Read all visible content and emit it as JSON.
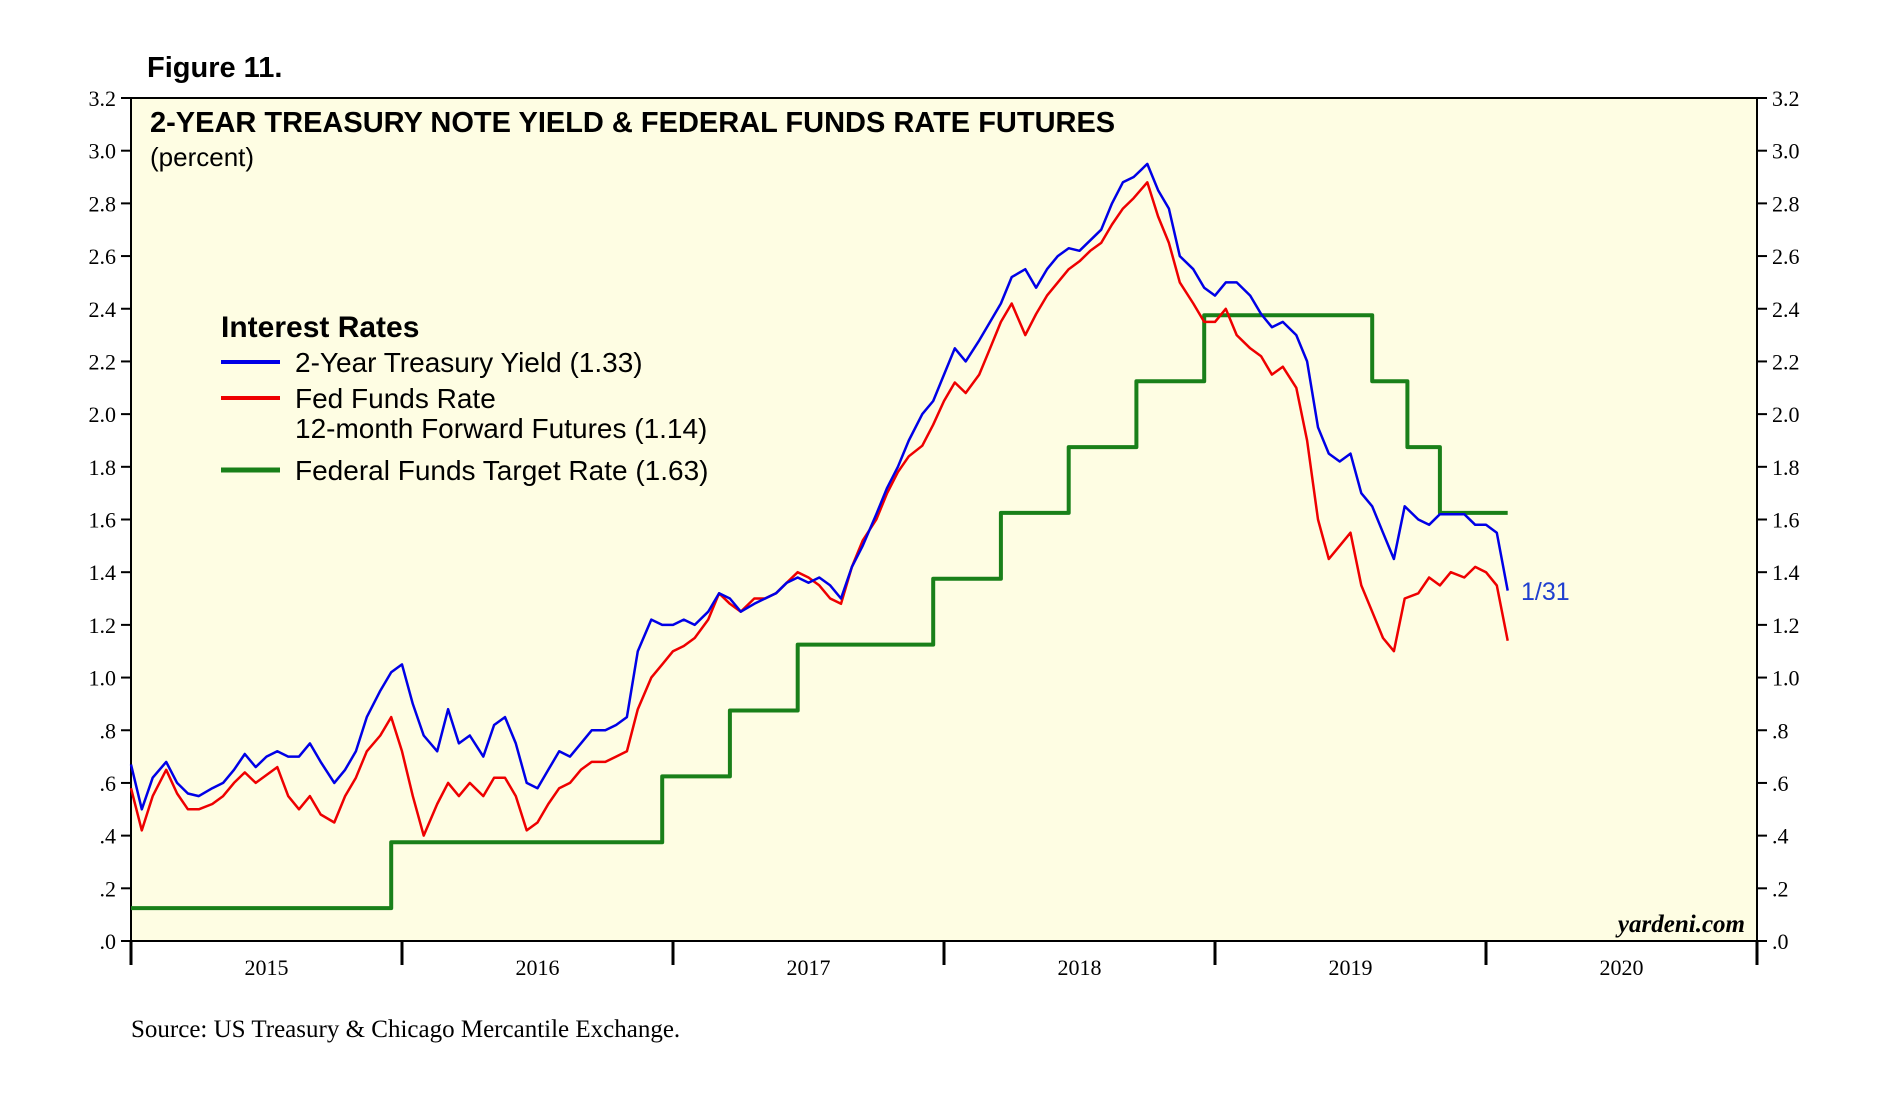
{
  "figure_label": "Figure 11.",
  "source": "Source: US Treasury & Chicago Mercantile Exchange.",
  "brand": "yardeni.com",
  "end_label": "1/31",
  "colors": {
    "plot_background": "#fefde3",
    "treasury": "#0000e6",
    "futures": "#ee0000",
    "target": "#198019"
  },
  "chart_data": {
    "type": "line",
    "title": "2-YEAR TREASURY NOTE YIELD & FEDERAL FUNDS RATE FUTURES",
    "subtitle": "(percent)",
    "ylim": [
      0,
      3.2
    ],
    "xlim": [
      2015.0,
      2021.0
    ],
    "y_ticks": [
      ".0",
      ".2",
      ".4",
      ".6",
      ".8",
      "1.0",
      "1.2",
      "1.4",
      "1.6",
      "1.8",
      "2.0",
      "2.2",
      "2.4",
      "2.6",
      "2.8",
      "3.0",
      "3.2"
    ],
    "x_ticks": [
      "2015",
      "2016",
      "2017",
      "2018",
      "2019",
      "2020"
    ],
    "legend": {
      "title": "Interest Rates",
      "entries": [
        {
          "lines": [
            "2-Year Treasury Yield (1.33)"
          ]
        },
        {
          "lines": [
            "Fed Funds Rate",
            "12-month Forward Futures (1.14)"
          ]
        },
        {
          "lines": [
            "Federal Funds Target Rate (1.63)"
          ]
        }
      ]
    },
    "series": [
      {
        "name": "2-Year Treasury Yield",
        "last_value": 1.33,
        "x": [
          2015.0,
          2015.04,
          2015.08,
          2015.13,
          2015.17,
          2015.21,
          2015.25,
          2015.3,
          2015.34,
          2015.38,
          2015.42,
          2015.46,
          2015.5,
          2015.54,
          2015.58,
          2015.62,
          2015.66,
          2015.7,
          2015.75,
          2015.79,
          2015.83,
          2015.87,
          2015.92,
          2015.96,
          2016.0,
          2016.04,
          2016.08,
          2016.13,
          2016.17,
          2016.21,
          2016.25,
          2016.3,
          2016.34,
          2016.38,
          2016.42,
          2016.46,
          2016.5,
          2016.54,
          2016.58,
          2016.62,
          2016.66,
          2016.7,
          2016.75,
          2016.79,
          2016.83,
          2016.87,
          2016.92,
          2016.96,
          2017.0,
          2017.04,
          2017.08,
          2017.13,
          2017.17,
          2017.21,
          2017.25,
          2017.3,
          2017.34,
          2017.38,
          2017.42,
          2017.46,
          2017.5,
          2017.54,
          2017.58,
          2017.62,
          2017.66,
          2017.7,
          2017.75,
          2017.79,
          2017.83,
          2017.87,
          2017.92,
          2017.96,
          2018.0,
          2018.04,
          2018.08,
          2018.13,
          2018.17,
          2018.21,
          2018.25,
          2018.3,
          2018.34,
          2018.38,
          2018.42,
          2018.46,
          2018.5,
          2018.54,
          2018.58,
          2018.62,
          2018.66,
          2018.7,
          2018.75,
          2018.79,
          2018.83,
          2018.87,
          2018.92,
          2018.96,
          2019.0,
          2019.04,
          2019.08,
          2019.13,
          2019.17,
          2019.21,
          2019.25,
          2019.3,
          2019.34,
          2019.38,
          2019.42,
          2019.46,
          2019.5,
          2019.54,
          2019.58,
          2019.62,
          2019.66,
          2019.7,
          2019.75,
          2019.79,
          2019.83,
          2019.87,
          2019.92,
          2019.96,
          2020.0,
          2020.04,
          2020.08
        ],
        "values": [
          0.67,
          0.5,
          0.62,
          0.68,
          0.6,
          0.56,
          0.55,
          0.58,
          0.6,
          0.65,
          0.71,
          0.66,
          0.7,
          0.72,
          0.7,
          0.7,
          0.75,
          0.68,
          0.6,
          0.65,
          0.72,
          0.85,
          0.95,
          1.02,
          1.05,
          0.9,
          0.78,
          0.72,
          0.88,
          0.75,
          0.78,
          0.7,
          0.82,
          0.85,
          0.75,
          0.6,
          0.58,
          0.65,
          0.72,
          0.7,
          0.75,
          0.8,
          0.8,
          0.82,
          0.85,
          1.1,
          1.22,
          1.2,
          1.2,
          1.22,
          1.2,
          1.25,
          1.32,
          1.3,
          1.25,
          1.28,
          1.3,
          1.32,
          1.36,
          1.38,
          1.36,
          1.38,
          1.35,
          1.3,
          1.42,
          1.5,
          1.62,
          1.72,
          1.8,
          1.9,
          2.0,
          2.05,
          2.15,
          2.25,
          2.2,
          2.28,
          2.35,
          2.42,
          2.52,
          2.55,
          2.48,
          2.55,
          2.6,
          2.63,
          2.62,
          2.66,
          2.7,
          2.8,
          2.88,
          2.9,
          2.95,
          2.85,
          2.78,
          2.6,
          2.55,
          2.48,
          2.45,
          2.5,
          2.5,
          2.45,
          2.38,
          2.33,
          2.35,
          2.3,
          2.2,
          1.95,
          1.85,
          1.82,
          1.85,
          1.7,
          1.65,
          1.55,
          1.45,
          1.65,
          1.6,
          1.58,
          1.62,
          1.62,
          1.62,
          1.58,
          1.58,
          1.55,
          1.33
        ]
      },
      {
        "name": "Fed Funds Rate 12-month Forward Futures",
        "last_value": 1.14,
        "x": [
          2015.0,
          2015.04,
          2015.08,
          2015.13,
          2015.17,
          2015.21,
          2015.25,
          2015.3,
          2015.34,
          2015.38,
          2015.42,
          2015.46,
          2015.5,
          2015.54,
          2015.58,
          2015.62,
          2015.66,
          2015.7,
          2015.75,
          2015.79,
          2015.83,
          2015.87,
          2015.92,
          2015.96,
          2016.0,
          2016.04,
          2016.08,
          2016.13,
          2016.17,
          2016.21,
          2016.25,
          2016.3,
          2016.34,
          2016.38,
          2016.42,
          2016.46,
          2016.5,
          2016.54,
          2016.58,
          2016.62,
          2016.66,
          2016.7,
          2016.75,
          2016.79,
          2016.83,
          2016.87,
          2016.92,
          2016.96,
          2017.0,
          2017.04,
          2017.08,
          2017.13,
          2017.17,
          2017.21,
          2017.25,
          2017.3,
          2017.34,
          2017.38,
          2017.42,
          2017.46,
          2017.5,
          2017.54,
          2017.58,
          2017.62,
          2017.66,
          2017.7,
          2017.75,
          2017.79,
          2017.83,
          2017.87,
          2017.92,
          2017.96,
          2018.0,
          2018.04,
          2018.08,
          2018.13,
          2018.17,
          2018.21,
          2018.25,
          2018.3,
          2018.34,
          2018.38,
          2018.42,
          2018.46,
          2018.5,
          2018.54,
          2018.58,
          2018.62,
          2018.66,
          2018.7,
          2018.75,
          2018.79,
          2018.83,
          2018.87,
          2018.92,
          2018.96,
          2019.0,
          2019.04,
          2019.08,
          2019.13,
          2019.17,
          2019.21,
          2019.25,
          2019.3,
          2019.34,
          2019.38,
          2019.42,
          2019.46,
          2019.5,
          2019.54,
          2019.58,
          2019.62,
          2019.66,
          2019.7,
          2019.75,
          2019.79,
          2019.83,
          2019.87,
          2019.92,
          2019.96,
          2020.0,
          2020.04,
          2020.08
        ],
        "values": [
          0.58,
          0.42,
          0.55,
          0.65,
          0.56,
          0.5,
          0.5,
          0.52,
          0.55,
          0.6,
          0.64,
          0.6,
          0.63,
          0.66,
          0.55,
          0.5,
          0.55,
          0.48,
          0.45,
          0.55,
          0.62,
          0.72,
          0.78,
          0.85,
          0.72,
          0.55,
          0.4,
          0.52,
          0.6,
          0.55,
          0.6,
          0.55,
          0.62,
          0.62,
          0.55,
          0.42,
          0.45,
          0.52,
          0.58,
          0.6,
          0.65,
          0.68,
          0.68,
          0.7,
          0.72,
          0.88,
          1.0,
          1.05,
          1.1,
          1.12,
          1.15,
          1.22,
          1.32,
          1.28,
          1.25,
          1.3,
          1.3,
          1.32,
          1.36,
          1.4,
          1.38,
          1.35,
          1.3,
          1.28,
          1.42,
          1.52,
          1.6,
          1.7,
          1.78,
          1.84,
          1.88,
          1.96,
          2.05,
          2.12,
          2.08,
          2.15,
          2.25,
          2.35,
          2.42,
          2.3,
          2.38,
          2.45,
          2.5,
          2.55,
          2.58,
          2.62,
          2.65,
          2.72,
          2.78,
          2.82,
          2.88,
          2.75,
          2.65,
          2.5,
          2.42,
          2.35,
          2.35,
          2.4,
          2.3,
          2.25,
          2.22,
          2.15,
          2.18,
          2.1,
          1.9,
          1.6,
          1.45,
          1.5,
          1.55,
          1.35,
          1.25,
          1.15,
          1.1,
          1.3,
          1.32,
          1.38,
          1.35,
          1.4,
          1.38,
          1.42,
          1.4,
          1.35,
          1.14
        ]
      },
      {
        "name": "Federal Funds Target Rate",
        "last_value": 1.63,
        "step": true,
        "x": [
          2015.0,
          2015.96,
          2016.96,
          2017.21,
          2017.46,
          2017.96,
          2018.21,
          2018.46,
          2018.71,
          2018.96,
          2019.58,
          2019.71,
          2019.83,
          2020.08
        ],
        "values": [
          0.125,
          0.375,
          0.625,
          0.875,
          1.125,
          1.375,
          1.625,
          1.875,
          2.125,
          2.375,
          2.125,
          1.875,
          1.625,
          1.625
        ]
      }
    ]
  }
}
